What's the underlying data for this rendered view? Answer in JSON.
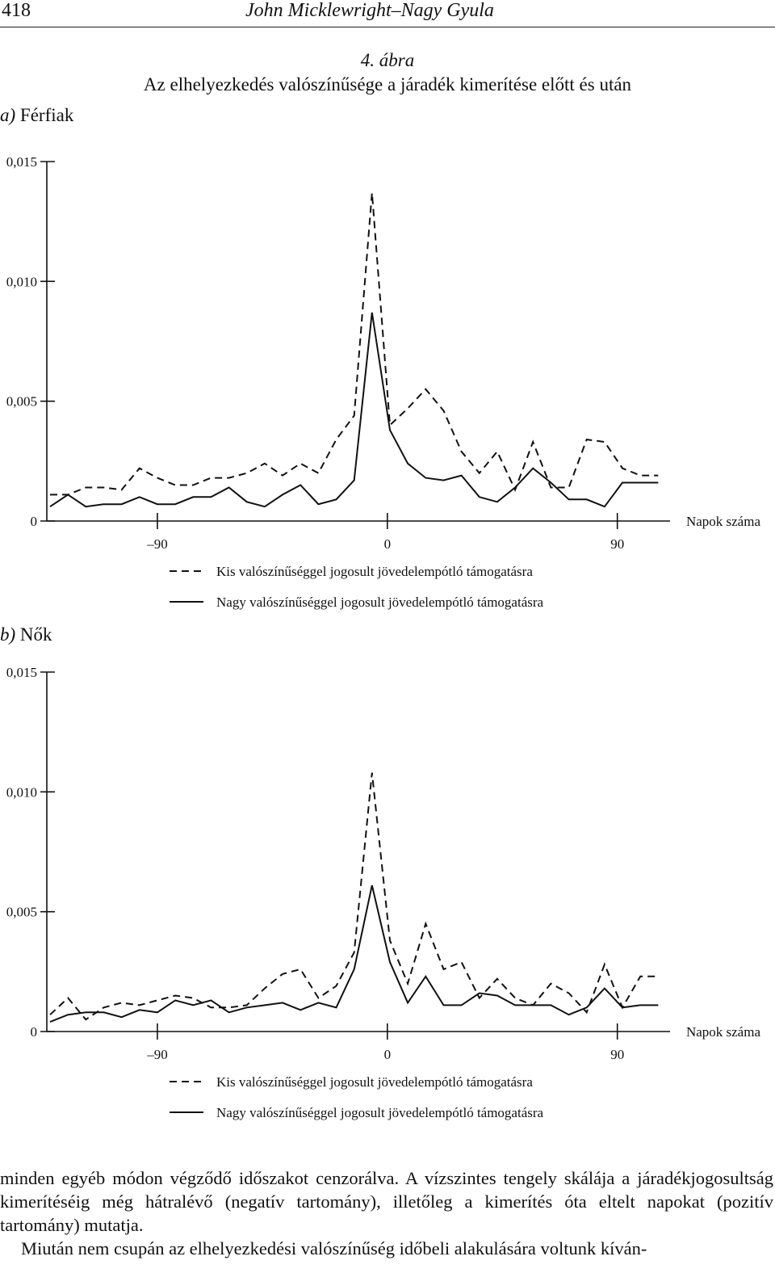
{
  "header": {
    "page_number": "418",
    "running_head": "John Micklewright–Nagy Gyula"
  },
  "figure": {
    "number": "4. ábra",
    "title": "Az elhelyezkedés valószínűsége a járadék kimerítése előtt és után"
  },
  "panels": [
    {
      "label_letter": "a)",
      "label_text": " Férfiak"
    },
    {
      "label_letter": "b)",
      "label_text": " Nők"
    }
  ],
  "chart_data": [
    {
      "type": "line",
      "title": "",
      "xlabel": "Napok száma",
      "ylabel": "",
      "x_ticks": [
        "–90",
        "0",
        "90"
      ],
      "y_ticks": [
        "0",
        "0,005",
        "0,010",
        "0,015"
      ],
      "xlim": [
        -132,
        110
      ],
      "ylim": [
        0,
        0.015
      ],
      "x": [
        -132,
        -125,
        -118,
        -111,
        -104,
        -97,
        -90,
        -83,
        -76,
        -69,
        -62,
        -55,
        -48,
        -41,
        -34,
        -27,
        -20,
        -13,
        -6,
        1,
        8,
        15,
        22,
        29,
        36,
        43,
        50,
        57,
        64,
        71,
        78,
        85,
        92,
        99,
        106
      ],
      "series": [
        {
          "name": "Kis valószínűséggel jogosult jövedelempótló támogatásra",
          "style": "dashed",
          "values": [
            0.0011,
            0.0011,
            0.0014,
            0.0014,
            0.0013,
            0.0022,
            0.0018,
            0.0015,
            0.0015,
            0.0018,
            0.0018,
            0.002,
            0.0024,
            0.0019,
            0.0024,
            0.002,
            0.0034,
            0.0044,
            0.0137,
            0.004,
            0.0047,
            0.0055,
            0.0046,
            0.0029,
            0.002,
            0.0029,
            0.0013,
            0.0033,
            0.0014,
            0.0014,
            0.0034,
            0.0033,
            0.0022,
            0.0019,
            0.0019
          ]
        },
        {
          "name": "Nagy valószínűséggel jogosult jövedelempótló támogatásra",
          "style": "solid",
          "values": [
            0.0006,
            0.0011,
            0.0006,
            0.0007,
            0.0007,
            0.001,
            0.0007,
            0.0007,
            0.001,
            0.001,
            0.0014,
            0.0008,
            0.0006,
            0.0011,
            0.0015,
            0.0007,
            0.0009,
            0.0017,
            0.0087,
            0.0038,
            0.0024,
            0.0018,
            0.0017,
            0.0019,
            0.001,
            0.0008,
            0.0014,
            0.0022,
            0.0016,
            0.0009,
            0.0009,
            0.0006,
            0.0016,
            0.0016,
            0.0016
          ]
        }
      ]
    },
    {
      "type": "line",
      "title": "",
      "xlabel": "Napok száma",
      "ylabel": "",
      "x_ticks": [
        "–90",
        "0",
        "90"
      ],
      "y_ticks": [
        "0",
        "0,005",
        "0,010",
        "0,015"
      ],
      "xlim": [
        -132,
        110
      ],
      "ylim": [
        0,
        0.015
      ],
      "x": [
        -132,
        -125,
        -118,
        -111,
        -104,
        -97,
        -90,
        -83,
        -76,
        -69,
        -62,
        -55,
        -48,
        -41,
        -34,
        -27,
        -20,
        -13,
        -6,
        1,
        8,
        15,
        22,
        29,
        36,
        43,
        50,
        57,
        64,
        71,
        78,
        85,
        92,
        99,
        106
      ],
      "series": [
        {
          "name": "Kis valószínűséggel jogosult jövedelempótló támogatásra",
          "style": "dashed",
          "values": [
            0.0007,
            0.0014,
            0.0005,
            0.001,
            0.0012,
            0.0011,
            0.0013,
            0.0015,
            0.0014,
            0.001,
            0.001,
            0.0011,
            0.0018,
            0.0024,
            0.0026,
            0.0014,
            0.0019,
            0.0033,
            0.0108,
            0.0038,
            0.002,
            0.0045,
            0.0026,
            0.0029,
            0.0014,
            0.0022,
            0.0014,
            0.0011,
            0.002,
            0.0016,
            0.0008,
            0.0028,
            0.001,
            0.0023,
            0.0023
          ]
        },
        {
          "name": "Nagy valószínűséggel jogosult jövedelempótló támogatásra",
          "style": "solid",
          "values": [
            0.0004,
            0.0007,
            0.0008,
            0.0008,
            0.0006,
            0.0009,
            0.0008,
            0.0013,
            0.0011,
            0.0013,
            0.0008,
            0.001,
            0.0011,
            0.0012,
            0.0009,
            0.0012,
            0.001,
            0.0026,
            0.0061,
            0.0029,
            0.0012,
            0.0023,
            0.0011,
            0.0011,
            0.0016,
            0.0015,
            0.0011,
            0.0011,
            0.0011,
            0.0007,
            0.001,
            0.0018,
            0.001,
            0.0011,
            0.0011
          ]
        }
      ]
    }
  ],
  "body": {
    "paragraph_1": "minden egyéb módon végződő időszakot cenzorálva. A vízszintes tengely skálája a járadékjogosultság kimerítéséig még hátralévő (negatív tartomány), illetőleg a kimerítés óta eltelt napokat (pozitív tartomány) mutatja.",
    "paragraph_2": "Miután nem csupán az elhelyezkedési valószínűség időbeli alakulására voltunk kíván-"
  }
}
